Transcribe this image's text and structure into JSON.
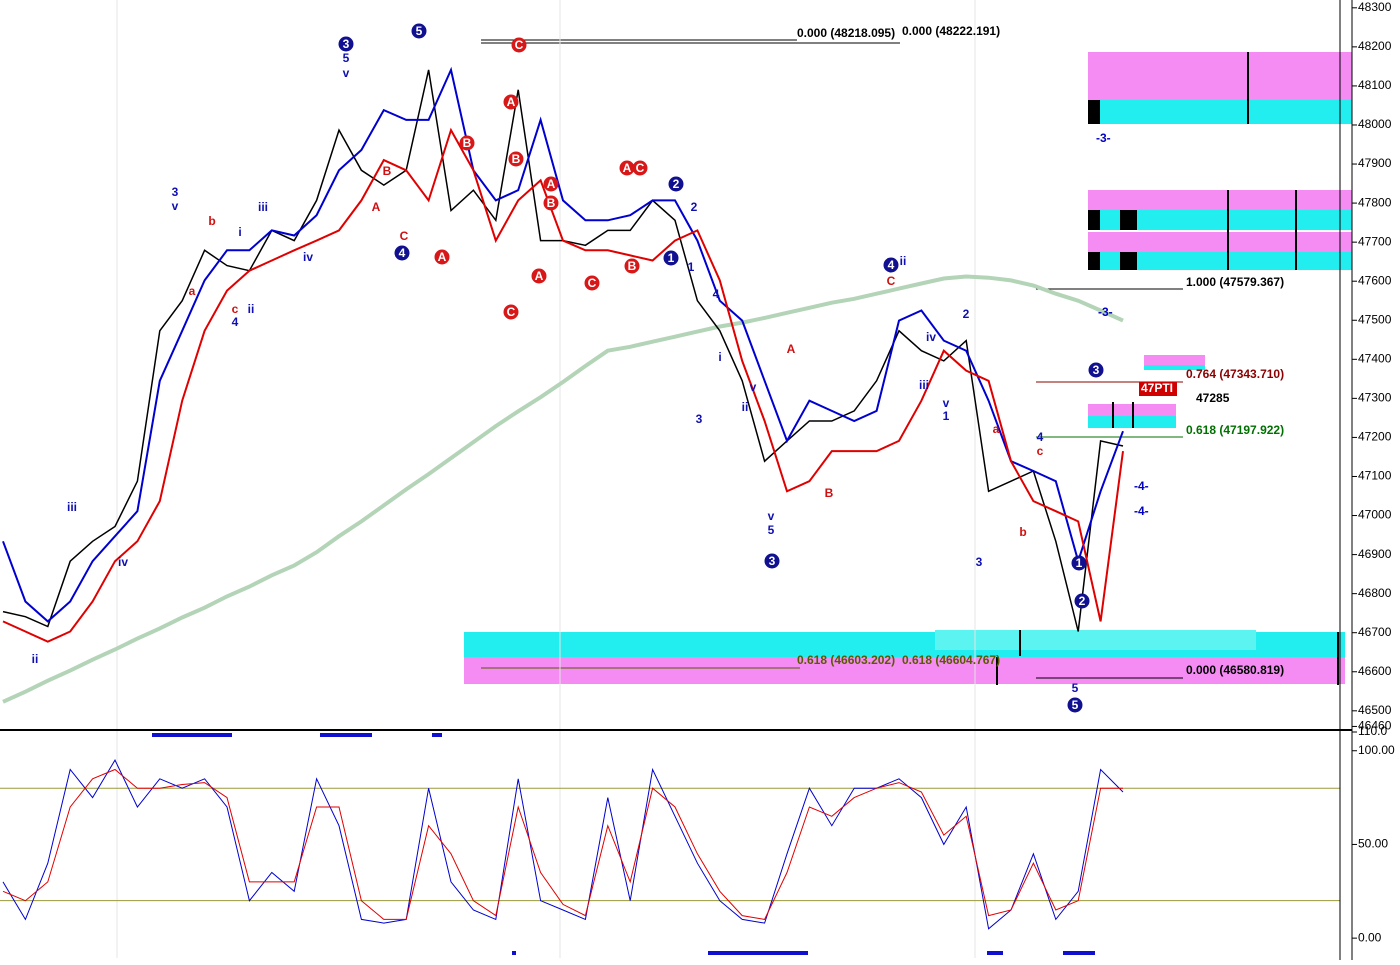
{
  "chart_data": [
    {
      "type": "line",
      "ylim": [
        46456,
        48320
      ],
      "yticks": [
        46460,
        46500,
        46600,
        46700,
        46800,
        46900,
        47000,
        47100,
        47200,
        47300,
        47400,
        47500,
        47600,
        47700,
        47800,
        47900,
        48000,
        48100,
        48200,
        48300
      ],
      "series": [
        {
          "name": "close",
          "color": "#000000",
          "values": [
            46754,
            46741,
            46716,
            46883,
            46934,
            46972,
            47088,
            47473,
            47550,
            47679,
            47640,
            47627,
            47730,
            47704,
            47807,
            47987,
            47884,
            47846,
            47884,
            48141,
            47781,
            47833,
            47756,
            48090,
            47704,
            47704,
            47692,
            47730,
            47730,
            47807,
            47756,
            47550,
            47473,
            47345,
            47139,
            47191,
            47242,
            47242,
            47268,
            47345,
            47473,
            47422,
            47396,
            47448,
            47062,
            47088,
            47114,
            46934,
            46703,
            47191,
            47178
          ]
        },
        {
          "name": "fast-ma",
          "color": "#0000d0",
          "values": [
            46934,
            46780,
            46729,
            46780,
            46883,
            46947,
            47011,
            47345,
            47473,
            47602,
            47679,
            47679,
            47730,
            47717,
            47769,
            47884,
            47936,
            48038,
            48013,
            48013,
            48141,
            47884,
            47807,
            47833,
            48013,
            47807,
            47756,
            47756,
            47769,
            47807,
            47807,
            47704,
            47550,
            47499,
            47345,
            47191,
            47294,
            47268,
            47242,
            47268,
            47499,
            47525,
            47448,
            47422,
            47294,
            47139,
            47114,
            47088,
            46883,
            47062,
            47216
          ]
        },
        {
          "name": "slow-ma",
          "color": "#e00000",
          "values": [
            46729,
            46703,
            46677,
            46703,
            46780,
            46883,
            46934,
            47037,
            47294,
            47473,
            47576,
            47627,
            47653,
            47679,
            47704,
            47730,
            47807,
            47910,
            47884,
            47807,
            47987,
            47884,
            47704,
            47807,
            47858,
            47704,
            47679,
            47679,
            47666,
            47653,
            47704,
            47730,
            47602,
            47396,
            47242,
            47062,
            47088,
            47165,
            47165,
            47165,
            47191,
            47294,
            47422,
            47371,
            47345,
            47139,
            47037,
            47011,
            46985,
            46729,
            47165
          ]
        },
        {
          "name": "long-ma",
          "color": "#b4d4b8",
          "values": [
            46523,
            46549,
            46577,
            46603,
            46631,
            46657,
            46685,
            46711,
            46739,
            46764,
            46793,
            46818,
            46847,
            46872,
            46906,
            46947,
            46985,
            47026,
            47067,
            47106,
            47147,
            47188,
            47229,
            47267,
            47303,
            47342,
            47383,
            47422,
            47432,
            47445,
            47458,
            47471,
            47484,
            47494,
            47506,
            47519,
            47532,
            47545,
            47555,
            47568,
            47581,
            47594,
            47607,
            47612,
            47609,
            47602,
            47589,
            47568,
            47550,
            47525,
            47499
          ]
        }
      ],
      "annotations": [
        {
          "text": "0.000 (48218.095)",
          "color": "#000000"
        },
        {
          "text": "0.000 (48222.191)",
          "color": "#000000"
        },
        {
          "text": "1.000 (47579.367)",
          "color": "#000000"
        },
        {
          "text": "0.764 (47343.710)",
          "color": "#8b0000"
        },
        {
          "text": "47285",
          "color": "#000000"
        },
        {
          "text": "0.618 (47197.922)",
          "color": "#007000"
        },
        {
          "text": "0.618 (46603.202)",
          "color": "#5a5a00"
        },
        {
          "text": "0.618 (46604.767)",
          "color": "#5a5a00"
        },
        {
          "text": "0.000 (46580.819)",
          "color": "#000000"
        },
        {
          "text": "47PTI",
          "color": "#ffffff"
        },
        {
          "text": "-3-",
          "color": "#0000c0"
        },
        {
          "text": "-3-",
          "color": "#0000c0"
        },
        {
          "text": "-4-",
          "color": "#0000c0"
        },
        {
          "text": "-4-",
          "color": "#0000c0"
        }
      ],
      "wave_labels": {
        "blue": [
          "3",
          "v",
          "iii",
          "iv",
          "ii",
          "i",
          "iii",
          "ii",
          "4",
          "iv",
          "5",
          "v",
          "2",
          "1",
          "4",
          "i",
          "ii",
          "v",
          "3",
          "v",
          "5",
          "ii",
          "iv",
          "iii",
          "v",
          "1",
          "2",
          "3",
          "5",
          "4"
        ],
        "red": [
          "a",
          "b",
          "c",
          "A",
          "B",
          "C",
          "A",
          "B",
          "C",
          "c",
          "b",
          "a"
        ]
      },
      "circled_labels": {
        "blue": [
          "3",
          "5",
          "4",
          "2",
          "1",
          "4",
          "3",
          "3",
          "1",
          "2",
          "5"
        ],
        "red": [
          "C",
          "A",
          "B",
          "B",
          "A",
          "B",
          "A",
          "A",
          "C",
          "C",
          "B",
          "A",
          "C"
        ]
      }
    },
    {
      "type": "line",
      "ylim": [
        -10.6,
        110
      ],
      "yticks": [
        {
          "value": 0,
          "label": "0.00"
        },
        {
          "value": 50,
          "label": "50.00"
        },
        {
          "value": 100,
          "label": "100.00"
        },
        {
          "value": 110,
          "label": "110.0"
        }
      ],
      "hlines": [
        20,
        80
      ],
      "series": [
        {
          "name": "k",
          "color": "#0000d0",
          "values": [
            30,
            10,
            40,
            90,
            75,
            95,
            70,
            85,
            80,
            85,
            70,
            20,
            35,
            25,
            85,
            60,
            10,
            8,
            10,
            80,
            30,
            15,
            10,
            85,
            20,
            15,
            10,
            75,
            20,
            90,
            65,
            40,
            20,
            10,
            8,
            45,
            80,
            60,
            80,
            80,
            85,
            75,
            50,
            70,
            5,
            15,
            45,
            10,
            25,
            90,
            78
          ]
        },
        {
          "name": "d",
          "color": "#e00000",
          "values": [
            25,
            20,
            30,
            70,
            85,
            90,
            80,
            80,
            82,
            83,
            75,
            30,
            30,
            30,
            70,
            70,
            20,
            10,
            10,
            60,
            45,
            20,
            12,
            70,
            35,
            18,
            12,
            60,
            30,
            80,
            70,
            45,
            25,
            12,
            10,
            35,
            70,
            65,
            75,
            80,
            83,
            78,
            55,
            65,
            12,
            15,
            40,
            15,
            20,
            80,
            80
          ]
        }
      ]
    }
  ]
}
